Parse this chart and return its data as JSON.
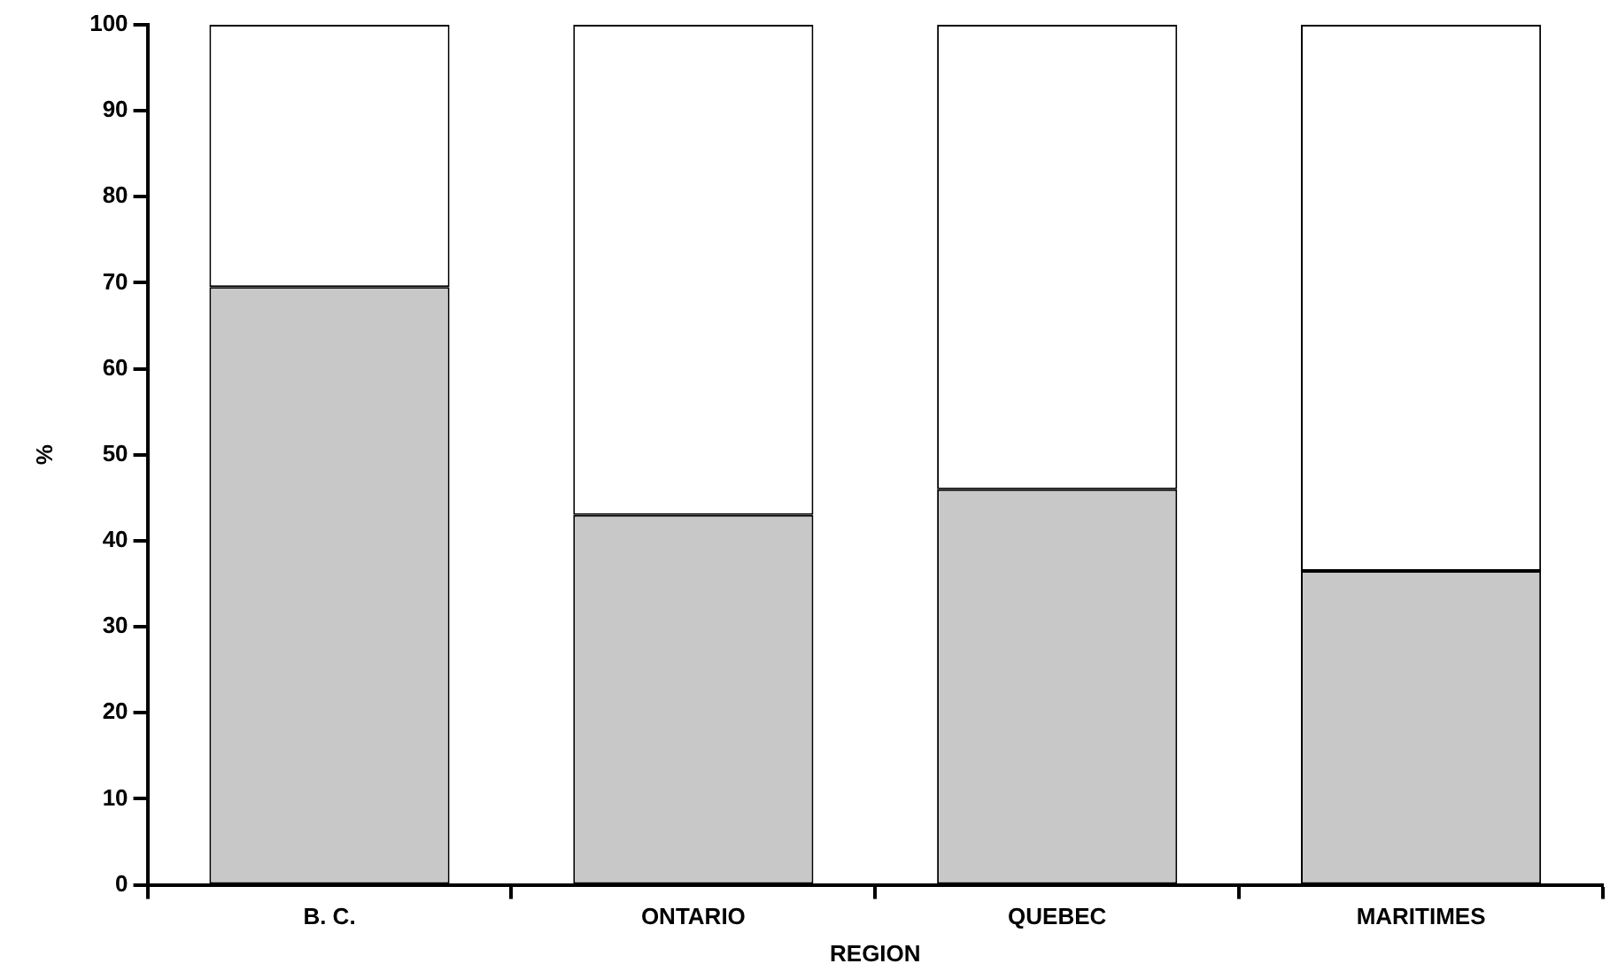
{
  "chart_data": {
    "type": "bar",
    "stacked": true,
    "xlabel": "REGION",
    "ylabel": "%",
    "categories": [
      "B. C.",
      "ONTARIO",
      "QUEBEC",
      "MARITIMES"
    ],
    "series": [
      {
        "color": "#c8c8c8",
        "values": [
          69.5,
          43,
          46,
          36.5
        ]
      },
      {
        "color": "#ffffff",
        "values": [
          30.5,
          57,
          54,
          63.5
        ]
      }
    ],
    "ylim": [
      0,
      100
    ],
    "yticks": [
      0,
      10,
      20,
      30,
      40,
      50,
      60,
      70,
      80,
      90,
      100
    ],
    "grid": false,
    "legend": false
  }
}
